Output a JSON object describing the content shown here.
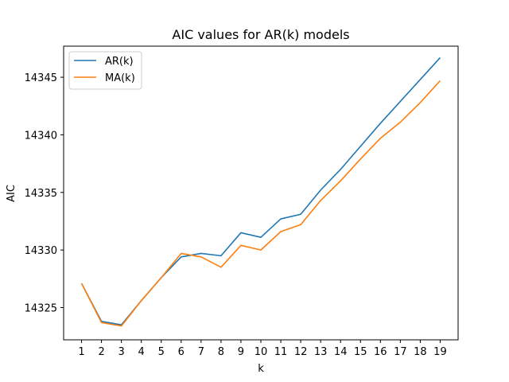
{
  "chart_data": {
    "type": "line",
    "title": "AIC values for AR(k) models",
    "xlabel": "k",
    "ylabel": "AIC",
    "x": [
      1,
      2,
      3,
      4,
      5,
      6,
      7,
      8,
      9,
      10,
      11,
      12,
      13,
      14,
      15,
      16,
      17,
      18,
      19
    ],
    "xticks": [
      1,
      2,
      3,
      4,
      5,
      6,
      7,
      8,
      9,
      10,
      11,
      12,
      13,
      14,
      15,
      16,
      17,
      18,
      19
    ],
    "yticks": [
      14325,
      14330,
      14335,
      14340,
      14345
    ],
    "xlim": [
      0.1,
      19.9
    ],
    "ylim": [
      14322.2,
      14347.7
    ],
    "grid": false,
    "legend_position": "top-left",
    "series": [
      {
        "name": "AR(k)",
        "color": "#1f77b4",
        "values": [
          14327.1,
          14323.8,
          14323.5,
          14325.6,
          14327.6,
          14329.4,
          14329.7,
          14329.5,
          14331.5,
          14331.1,
          14332.7,
          14333.1,
          14335.2,
          14337.0,
          14339.0,
          14341.0,
          14342.9,
          14344.8,
          14346.7
        ]
      },
      {
        "name": "MA(k)",
        "color": "#ff7f0e",
        "values": [
          14327.1,
          14323.7,
          14323.4,
          14325.6,
          14327.6,
          14329.7,
          14329.4,
          14328.5,
          14330.4,
          14330.0,
          14331.6,
          14332.2,
          14334.3,
          14336.0,
          14337.9,
          14339.7,
          14341.1,
          14342.8,
          14344.7
        ]
      }
    ]
  }
}
